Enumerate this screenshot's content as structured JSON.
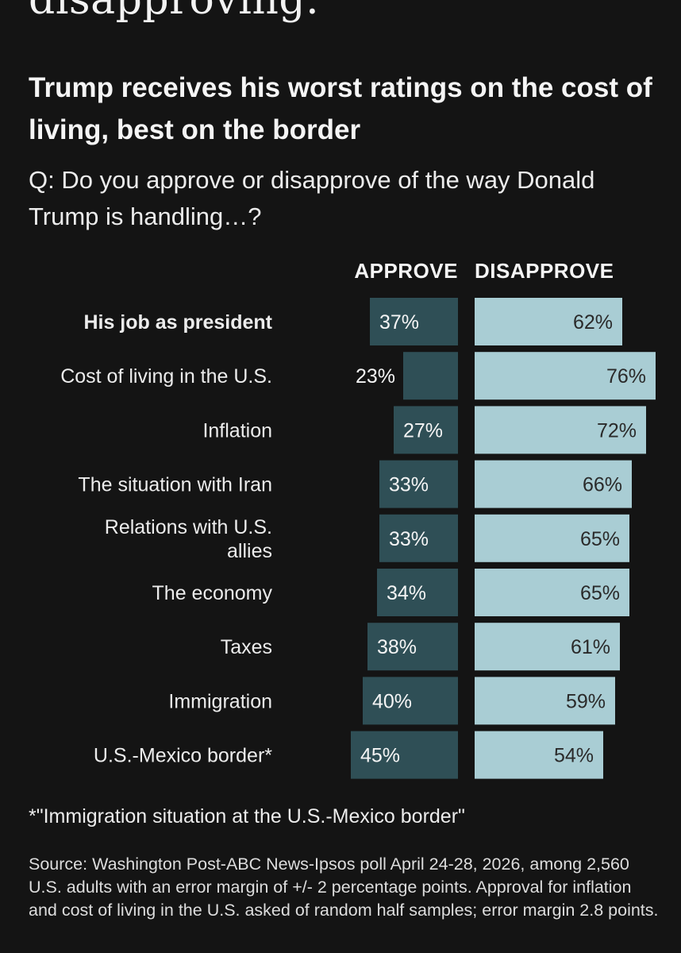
{
  "headline_fragment": "disapproving.",
  "chart_data": {
    "type": "bar",
    "title": "Trump receives his worst ratings on the cost of living, best on the border",
    "subtitle": "Q: Do you approve or disapprove of the way Donald Trump is handling…?",
    "categories": [
      "His job as president",
      "Cost of living in the U.S.",
      "Inflation",
      "The situation with Iran",
      "Relations with U.S. allies",
      "The economy",
      "Taxes",
      "Immigration",
      "U.S.-Mexico border*"
    ],
    "category_lines": [
      [
        "His job as president"
      ],
      [
        "Cost of living in the U.S."
      ],
      [
        "Inflation"
      ],
      [
        "The situation with Iran"
      ],
      [
        "Relations with U.S.",
        "allies"
      ],
      [
        "The economy"
      ],
      [
        "Taxes"
      ],
      [
        "Immigration"
      ],
      [
        "U.S.-Mexico border*"
      ]
    ],
    "emphasized_category": "His job as president",
    "series": [
      {
        "name": "APPROVE",
        "values": [
          37,
          23,
          27,
          33,
          33,
          34,
          38,
          40,
          45
        ],
        "color": "#2f4f56"
      },
      {
        "name": "DISAPPROVE",
        "values": [
          62,
          76,
          72,
          66,
          65,
          65,
          61,
          59,
          54
        ],
        "color": "#a9cdd4"
      }
    ],
    "value_suffix": "%",
    "ylim": [
      0,
      100
    ],
    "legend": "column headers above bars"
  },
  "footnote": "*\"Immigration situation at the U.S.-Mexico border\"",
  "source": "Source: Washington Post-ABC News-Ipsos poll April 24-28, 2026, among 2,560 U.S. adults with an error margin of +/- 2 percentage points. Approval for inflation and cost of living in the U.S. asked of random half samples; error margin 2.8 points.",
  "colors": {
    "background": "#141414",
    "approve": "#2f4f56",
    "disapprove": "#a9cdd4",
    "text": "#f2f2f2"
  }
}
